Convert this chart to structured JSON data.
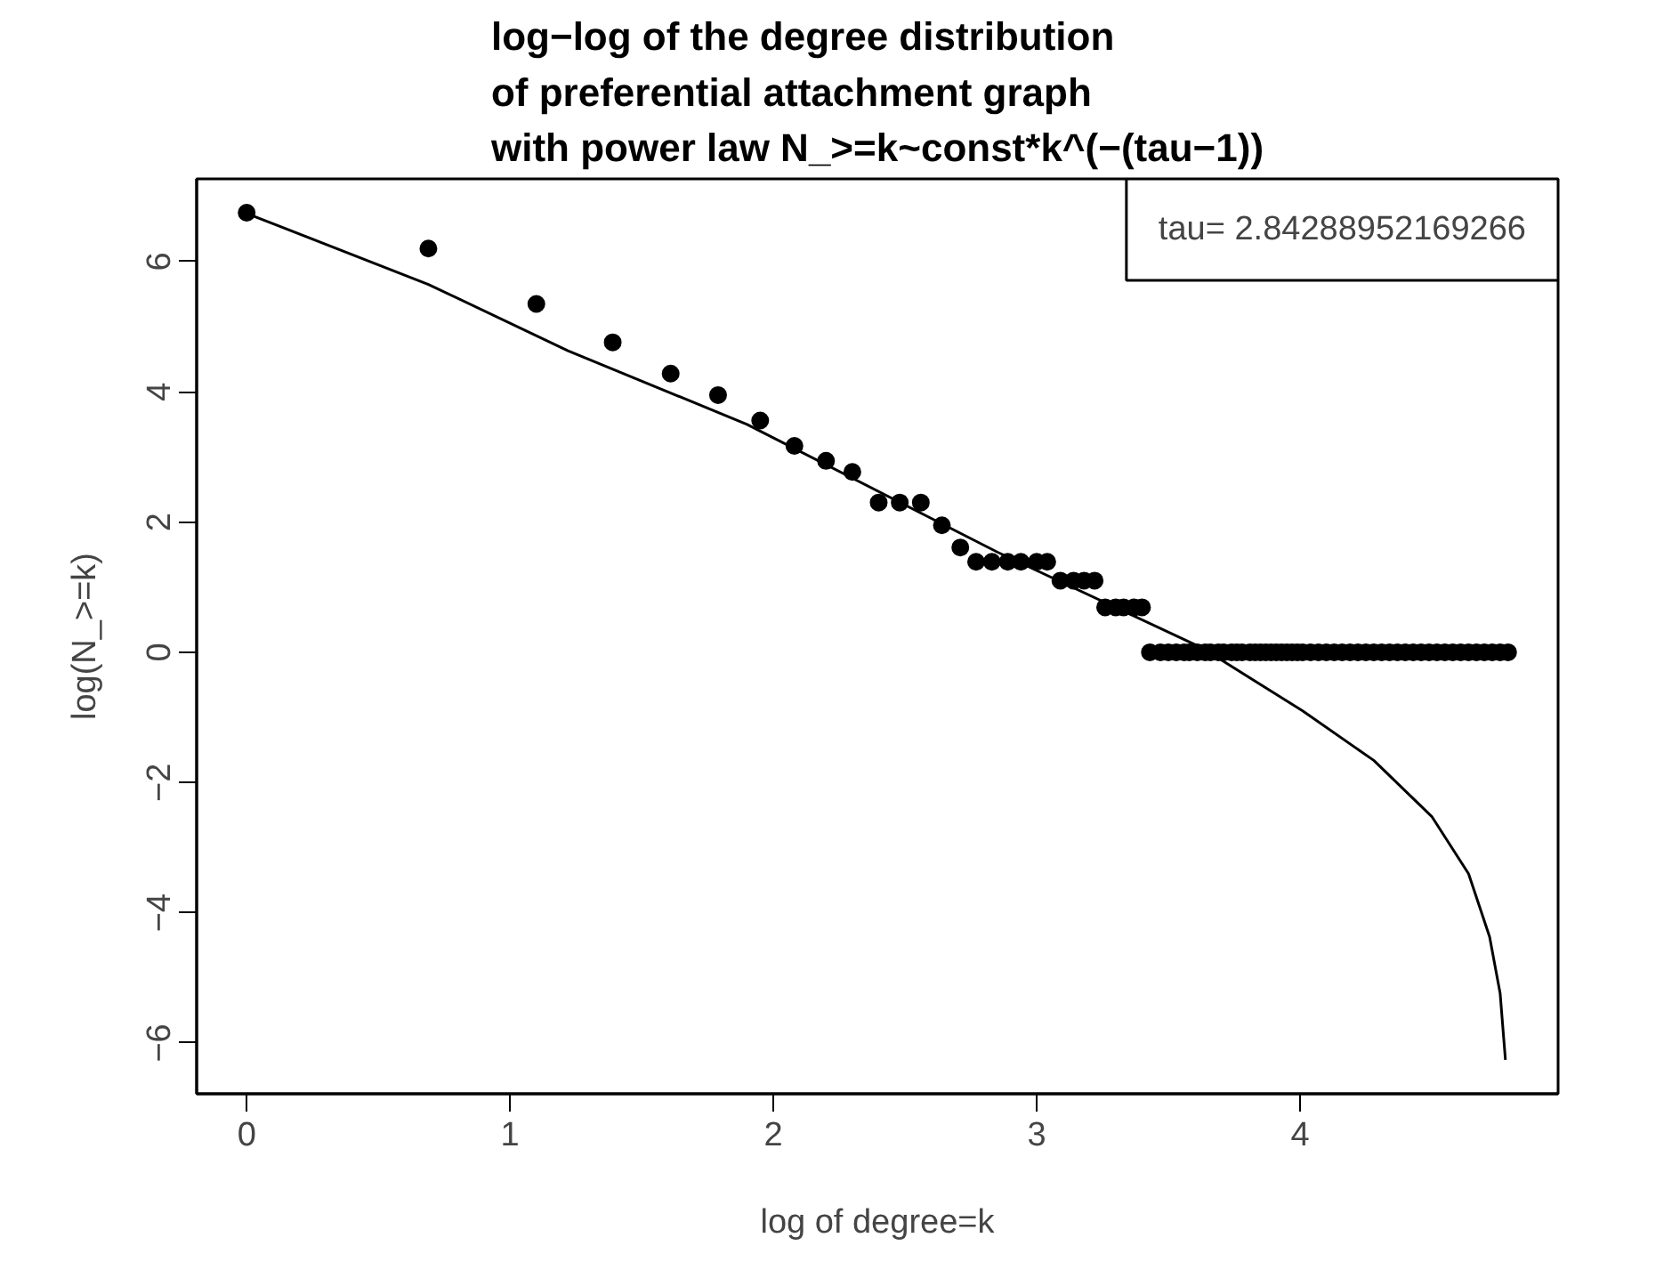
{
  "chart_data": {
    "type": "scatter",
    "title": "log−log of the degree distribution\nof preferential attachment graph\nwith power law N_>=k~const*k^(−(tau−1))",
    "xlabel": "log of degree=k",
    "ylabel": "log(N_>=k)",
    "annotations": [
      "tau= 2.84288952169266"
    ],
    "xlim": [
      -0.19,
      4.98
    ],
    "ylim": [
      -6.78,
      7.27
    ],
    "xticks": [
      0,
      1,
      2,
      3,
      4
    ],
    "yticks": [
      -6,
      -4,
      -2,
      0,
      2,
      4,
      6
    ],
    "grid": false,
    "series": [
      {
        "type": "scatter",
        "marker": "circle",
        "color": "#000000",
        "x": [
          0,
          0.69,
          1.1,
          1.39,
          1.61,
          1.79,
          1.95,
          2.08,
          2.2,
          2.3,
          2.4,
          2.48,
          2.56,
          2.64,
          2.71,
          2.77,
          2.83,
          2.89,
          2.94,
          3.0,
          3.04,
          3.09,
          3.14,
          3.18,
          3.22,
          3.26,
          3.3,
          3.33,
          3.37,
          3.4,
          3.43,
          3.47,
          3.5,
          3.53,
          3.56,
          3.58,
          3.61,
          3.64,
          3.66,
          3.69,
          3.71,
          3.74,
          3.76,
          3.78,
          3.81,
          3.83,
          3.85,
          3.87,
          3.89,
          3.91,
          3.93,
          3.95,
          3.97,
          3.99,
          4.01,
          4.04,
          4.07,
          4.1,
          4.13,
          4.16,
          4.19,
          4.22,
          4.25,
          4.28,
          4.31,
          4.34,
          4.37,
          4.4,
          4.43,
          4.46,
          4.49,
          4.52,
          4.55,
          4.58,
          4.61,
          4.64,
          4.67,
          4.7,
          4.73,
          4.76,
          4.79
        ],
        "values": [
          6.75,
          6.2,
          5.35,
          4.76,
          4.28,
          3.95,
          3.56,
          3.17,
          2.94,
          2.77,
          2.3,
          2.3,
          2.3,
          1.95,
          1.61,
          1.39,
          1.39,
          1.39,
          1.39,
          1.39,
          1.39,
          1.1,
          1.1,
          1.1,
          1.1,
          0.69,
          0.69,
          0.69,
          0.69,
          0.69,
          0,
          0,
          0,
          0,
          0,
          0,
          0,
          0,
          0,
          0,
          0,
          0,
          0,
          0,
          0,
          0,
          0,
          0,
          0,
          0,
          0,
          0,
          0,
          0,
          0,
          0,
          0,
          0,
          0,
          0,
          0,
          0,
          0,
          0,
          0,
          0,
          0,
          0,
          0,
          0,
          0,
          0,
          0,
          0,
          0,
          0,
          0,
          0,
          0,
          0,
          0
        ]
      },
      {
        "type": "line",
        "color": "#000000",
        "line_style": "solid",
        "x": [
          0,
          0.69,
          1.22,
          1.9,
          2.85,
          3.6,
          3.67,
          4.01,
          4.28,
          4.5,
          4.64,
          4.72,
          4.76,
          4.78
        ],
        "values": [
          6.74,
          5.65,
          4.63,
          3.5,
          1.54,
          0.12,
          -0.04,
          -0.9,
          -1.66,
          -2.52,
          -3.4,
          -4.37,
          -5.24,
          -6.26
        ]
      }
    ]
  }
}
